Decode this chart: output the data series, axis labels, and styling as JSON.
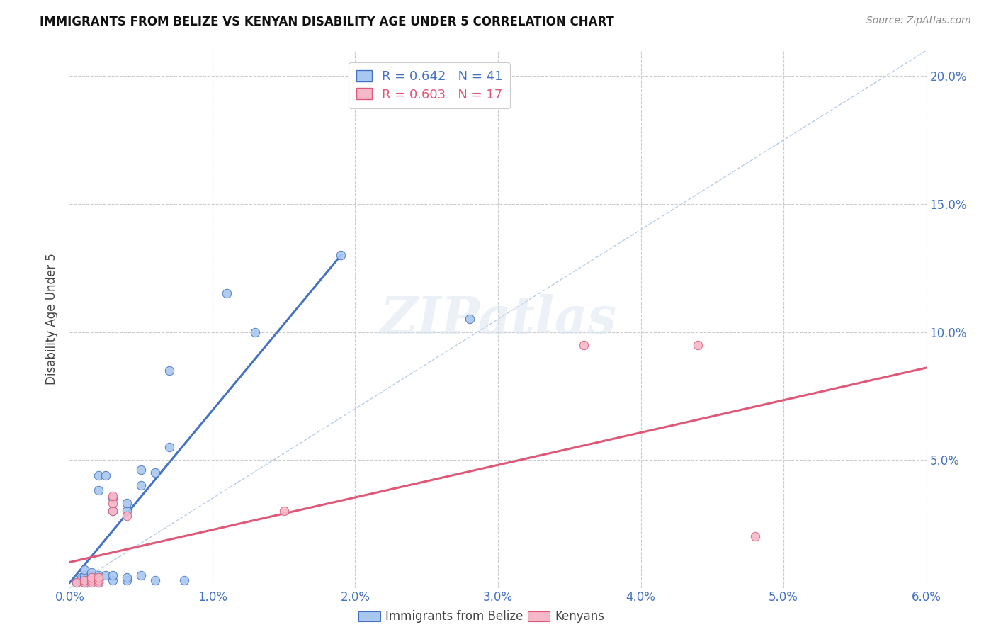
{
  "title": "IMMIGRANTS FROM BELIZE VS KENYAN DISABILITY AGE UNDER 5 CORRELATION CHART",
  "source": "Source: ZipAtlas.com",
  "ylabel": "Disability Age Under 5",
  "xlabel_blue": "Immigrants from Belize",
  "xlabel_pink": "Kenyans",
  "legend_blue_r": "R = 0.642",
  "legend_blue_n": "N = 41",
  "legend_pink_r": "R = 0.603",
  "legend_pink_n": "N = 17",
  "xmin": 0.0,
  "xmax": 0.06,
  "ymin": 0.0,
  "ymax": 0.21,
  "xticks": [
    0.0,
    0.01,
    0.02,
    0.03,
    0.04,
    0.05,
    0.06
  ],
  "yticks": [
    0.0,
    0.05,
    0.1,
    0.15,
    0.2
  ],
  "ytick_labels_left": [
    "",
    "5.0%",
    "10.0%",
    "15.0%",
    "20.0%"
  ],
  "ytick_labels_right": [
    "",
    "5.0%",
    "10.0%",
    "15.0%",
    "20.0%"
  ],
  "xtick_labels": [
    "0.0%",
    "1.0%",
    "2.0%",
    "3.0%",
    "4.0%",
    "5.0%",
    "6.0%"
  ],
  "color_blue": "#a8c8f0",
  "color_pink": "#f5b8c8",
  "color_blue_line": "#4472c4",
  "color_pink_line": "#e05878",
  "color_diag": "#b8cce4",
  "blue_points": [
    [
      0.0005,
      0.002
    ],
    [
      0.0007,
      0.003
    ],
    [
      0.0008,
      0.004
    ],
    [
      0.001,
      0.002
    ],
    [
      0.001,
      0.003
    ],
    [
      0.001,
      0.004
    ],
    [
      0.001,
      0.005
    ],
    [
      0.001,
      0.007
    ],
    [
      0.0012,
      0.002
    ],
    [
      0.0012,
      0.003
    ],
    [
      0.0015,
      0.004
    ],
    [
      0.0015,
      0.005
    ],
    [
      0.0015,
      0.006
    ],
    [
      0.002,
      0.002
    ],
    [
      0.002,
      0.003
    ],
    [
      0.002,
      0.004
    ],
    [
      0.002,
      0.005
    ],
    [
      0.002,
      0.038
    ],
    [
      0.002,
      0.044
    ],
    [
      0.0025,
      0.005
    ],
    [
      0.0025,
      0.044
    ],
    [
      0.003,
      0.003
    ],
    [
      0.003,
      0.005
    ],
    [
      0.003,
      0.03
    ],
    [
      0.003,
      0.035
    ],
    [
      0.004,
      0.003
    ],
    [
      0.004,
      0.004
    ],
    [
      0.004,
      0.03
    ],
    [
      0.004,
      0.033
    ],
    [
      0.005,
      0.005
    ],
    [
      0.005,
      0.04
    ],
    [
      0.005,
      0.046
    ],
    [
      0.006,
      0.003
    ],
    [
      0.006,
      0.045
    ],
    [
      0.007,
      0.055
    ],
    [
      0.007,
      0.085
    ],
    [
      0.008,
      0.003
    ],
    [
      0.011,
      0.115
    ],
    [
      0.013,
      0.1
    ],
    [
      0.019,
      0.13
    ],
    [
      0.028,
      0.105
    ]
  ],
  "pink_points": [
    [
      0.0005,
      0.002
    ],
    [
      0.001,
      0.002
    ],
    [
      0.001,
      0.003
    ],
    [
      0.0015,
      0.002
    ],
    [
      0.0015,
      0.003
    ],
    [
      0.0015,
      0.004
    ],
    [
      0.002,
      0.002
    ],
    [
      0.002,
      0.003
    ],
    [
      0.002,
      0.004
    ],
    [
      0.003,
      0.03
    ],
    [
      0.003,
      0.033
    ],
    [
      0.003,
      0.036
    ],
    [
      0.004,
      0.028
    ],
    [
      0.015,
      0.03
    ],
    [
      0.036,
      0.095
    ],
    [
      0.044,
      0.095
    ],
    [
      0.048,
      0.02
    ]
  ],
  "blue_line_x": [
    0.0,
    0.019
  ],
  "blue_line_y": [
    0.002,
    0.13
  ],
  "pink_line_x": [
    0.0,
    0.06
  ],
  "pink_line_y": [
    0.01,
    0.086
  ],
  "diag_line_x": [
    0.0,
    0.06
  ],
  "diag_line_y": [
    0.0,
    0.21
  ],
  "background_color": "#ffffff",
  "grid_color": "#cccccc"
}
